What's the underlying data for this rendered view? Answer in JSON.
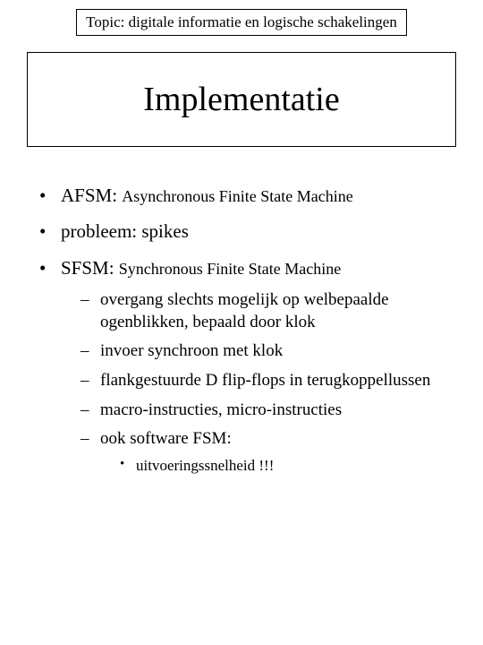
{
  "topic": "Topic: digitale informatie en logische schakelingen",
  "title": "Implementatie",
  "bullets": [
    {
      "label": "AFSM: ",
      "def": "Asynchronous Finite State Machine"
    },
    {
      "label": "probleem: spikes"
    },
    {
      "label": "SFSM: ",
      "def": "Synchronous Finite State Machine",
      "sub": [
        "overgang slechts mogelijk op welbepaalde ogenblikken, bepaald door klok",
        "invoer synchroon met klok",
        "flankgestuurde D flip-flops in terugkoppellussen",
        "macro-instructies, micro-instructies",
        "ook software FSM:"
      ],
      "subsub": [
        "uitvoeringssnelheid !!!"
      ]
    }
  ],
  "style": {
    "background_color": "#ffffff",
    "text_color": "#000000",
    "border_color": "#000000",
    "font_family": "Times New Roman",
    "title_fontsize": 38,
    "topic_fontsize": 17,
    "bullet_fontsize": 21,
    "def_fontsize": 18,
    "sub_fontsize": 19,
    "subsub_fontsize": 17
  }
}
